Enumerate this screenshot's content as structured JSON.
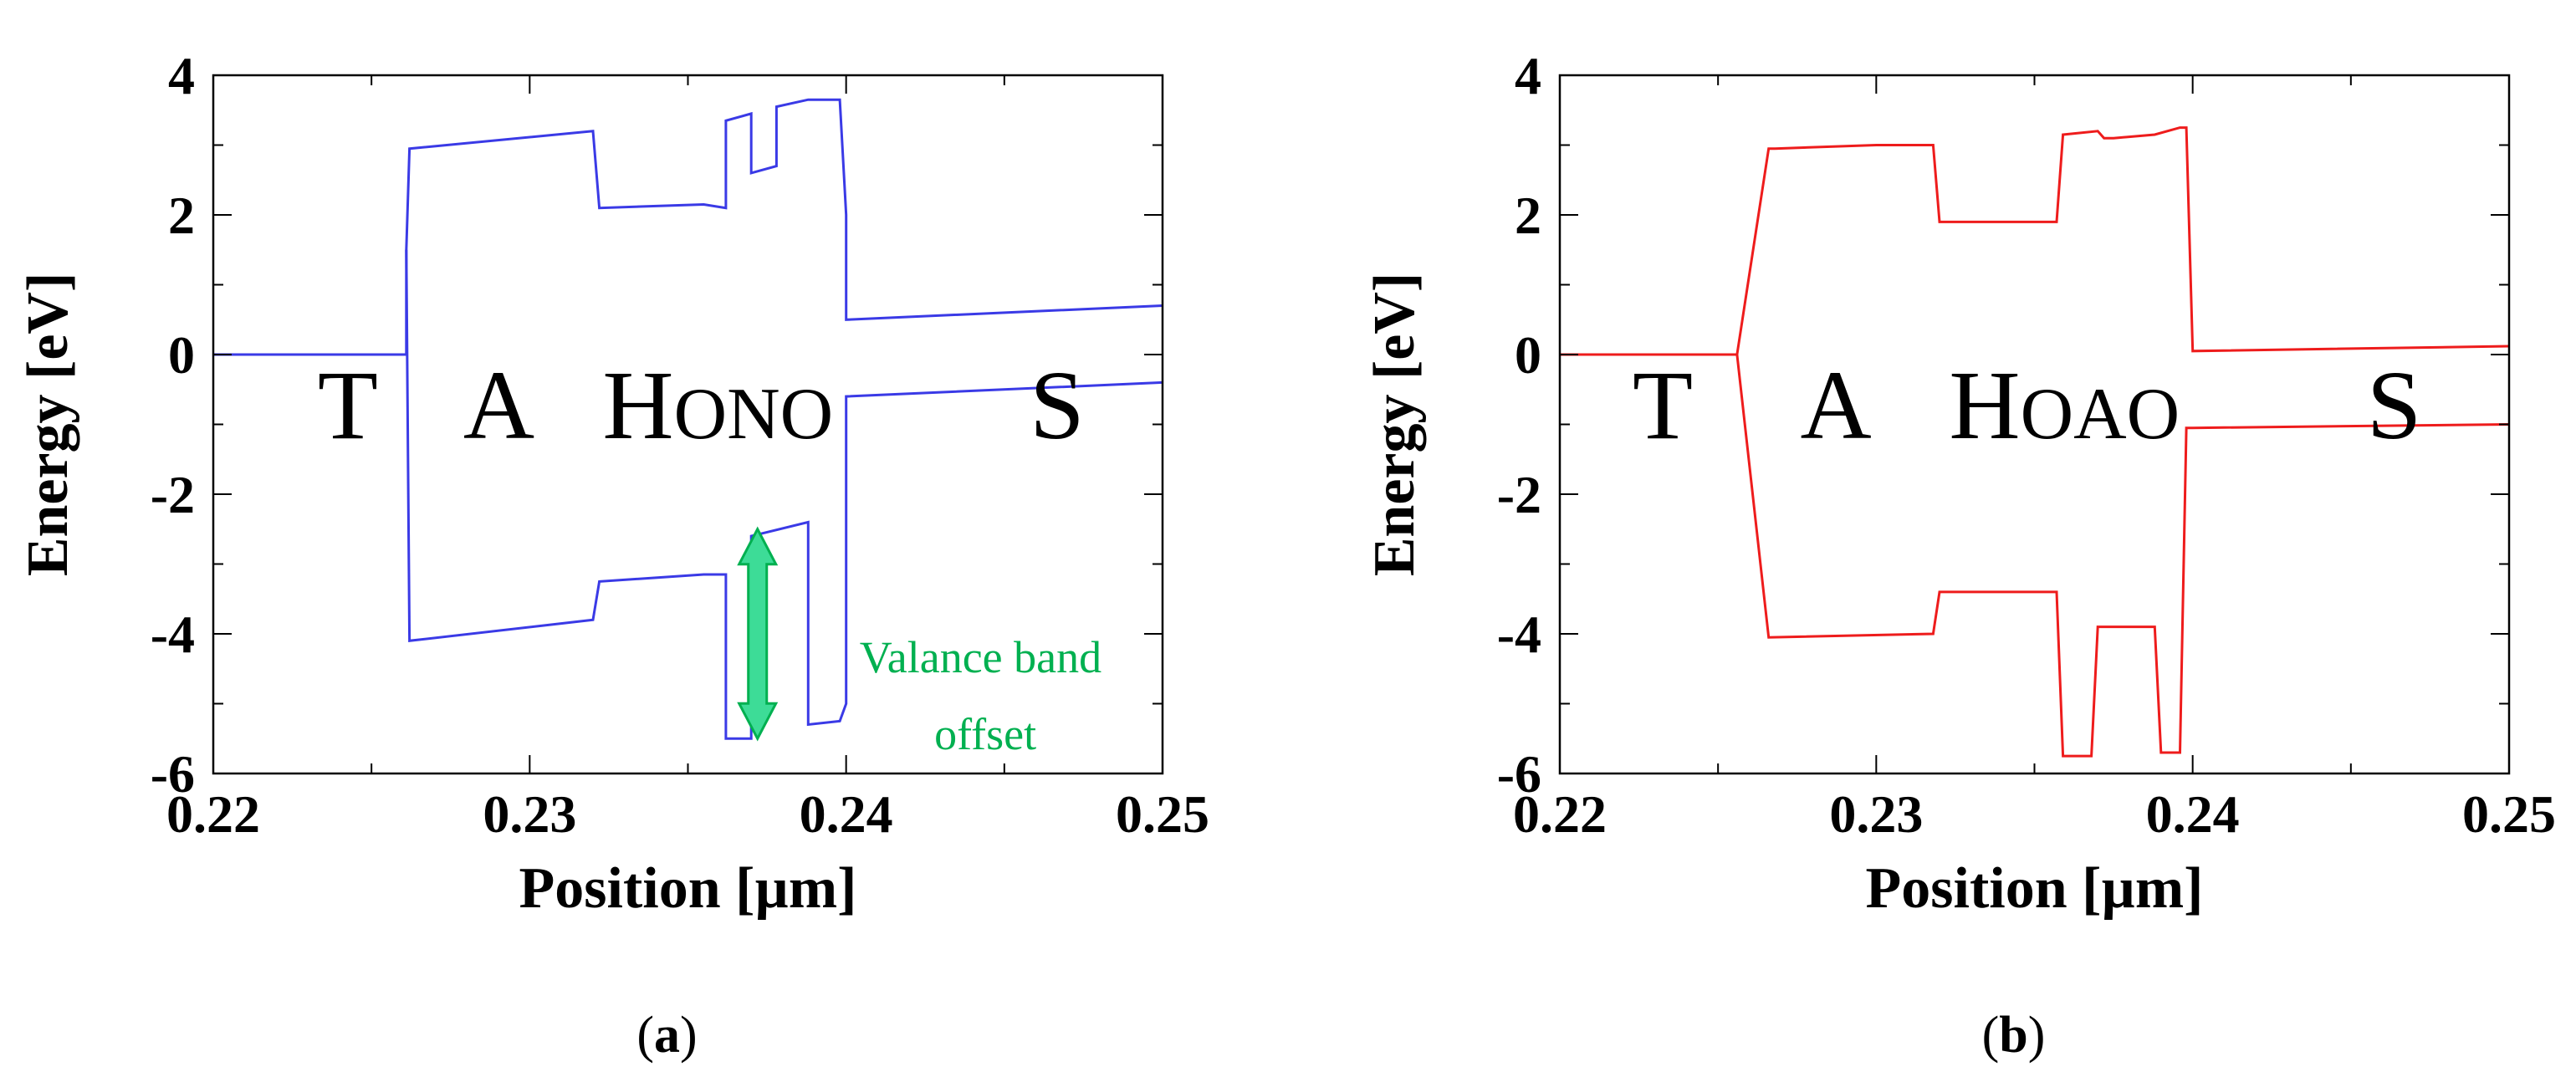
{
  "chart_data": [
    {
      "type": "line",
      "panel_label": "(a)",
      "caption": {
        "open": "(",
        "letter": "a",
        "close": ")"
      },
      "xlabel": "Position [µm]",
      "ylabel": "Energy [eV]",
      "xlim": [
        0.22,
        0.25
      ],
      "ylim": [
        -6,
        4
      ],
      "xticks": [
        0.22,
        0.23,
        0.24,
        0.25
      ],
      "xtick_labels": [
        "0.22",
        "0.23",
        "0.24",
        "0.25"
      ],
      "yticks": [
        -6,
        -4,
        -2,
        0,
        2,
        4
      ],
      "ytick_labels": [
        "-6",
        "-4",
        "-2",
        "0",
        "2",
        "4"
      ],
      "color": "#3a3ae6",
      "series": [
        {
          "name": "conduction band",
          "x": [
            0.22,
            0.2261,
            0.2261,
            0.2262,
            0.232,
            0.2322,
            0.2355,
            0.2362,
            0.2362,
            0.237,
            0.237,
            0.2378,
            0.2378,
            0.2388,
            0.2398,
            0.24,
            0.24,
            0.25
          ],
          "y": [
            0.0,
            0.0,
            1.5,
            2.95,
            3.2,
            2.1,
            2.15,
            2.1,
            3.35,
            3.45,
            2.6,
            2.7,
            3.55,
            3.65,
            3.65,
            2.0,
            0.5,
            0.7
          ]
        },
        {
          "name": "valence band",
          "x": [
            0.2261,
            0.2262,
            0.232,
            0.2322,
            0.2355,
            0.2362,
            0.2362,
            0.237,
            0.237,
            0.2388,
            0.2388,
            0.2398,
            0.24,
            0.24,
            0.25
          ],
          "y": [
            1.5,
            -4.1,
            -3.8,
            -3.25,
            -3.15,
            -3.15,
            -5.5,
            -5.5,
            -2.6,
            -2.4,
            -5.3,
            -5.25,
            -5.0,
            -0.6,
            -0.4
          ]
        }
      ],
      "region_labels": [
        {
          "main": "T",
          "small": "",
          "x": 0.2233,
          "y": -1.2
        },
        {
          "main": "A",
          "small": "",
          "x": 0.2279,
          "y": -1.2
        },
        {
          "main": "H",
          "small": "ONO",
          "x": 0.2323,
          "y": -1.2
        },
        {
          "main": "S",
          "small": "",
          "x": 0.2458,
          "y": -1.2
        }
      ],
      "annotation": {
        "line1": "Valance band",
        "line2": "offset",
        "arrow_x": 0.2372,
        "arrow_y_top": -2.5,
        "arrow_y_bottom": -5.5,
        "color": "#00b050",
        "fill": "#3ddc97"
      }
    },
    {
      "type": "line",
      "panel_label": "(b)",
      "caption": {
        "open": "(",
        "letter": "b",
        "close": ")"
      },
      "xlabel": "Position [µm]",
      "ylabel": "Energy [eV]",
      "xlim": [
        0.22,
        0.25
      ],
      "ylim": [
        -6,
        4
      ],
      "xticks": [
        0.22,
        0.23,
        0.24,
        0.25
      ],
      "xtick_labels": [
        "0.22",
        "0.23",
        "0.24",
        "0.25"
      ],
      "yticks": [
        -6,
        -4,
        -2,
        0,
        2,
        4
      ],
      "ytick_labels": [
        "-6",
        "-4",
        "-2",
        "0",
        "2",
        "4"
      ],
      "color": "#ee1c1c",
      "series": [
        {
          "name": "conduction band",
          "x": [
            0.22,
            0.2256,
            0.2266,
            0.2268,
            0.23,
            0.2302,
            0.2318,
            0.232,
            0.2357,
            0.2359,
            0.237,
            0.2372,
            0.2375,
            0.2388,
            0.2396,
            0.2398,
            0.24,
            0.25
          ],
          "y": [
            0.0,
            0.0,
            2.95,
            2.95,
            3.0,
            3.0,
            3.0,
            1.9,
            1.9,
            3.15,
            3.2,
            3.1,
            3.1,
            3.15,
            3.25,
            3.25,
            0.05,
            0.12
          ]
        },
        {
          "name": "valence band",
          "x": [
            0.2256,
            0.2266,
            0.2318,
            0.232,
            0.2357,
            0.2359,
            0.2368,
            0.237,
            0.2388,
            0.239,
            0.2396,
            0.2398,
            0.24,
            0.25
          ],
          "y": [
            0.0,
            -4.05,
            -4.0,
            -3.4,
            -3.4,
            -5.75,
            -5.75,
            -3.9,
            -3.9,
            -5.7,
            -5.7,
            -1.05,
            -1.05,
            -1.0
          ]
        }
      ],
      "region_labels": [
        {
          "main": "T",
          "small": "",
          "x": 0.2223,
          "y": -1.2
        },
        {
          "main": "A",
          "small": "",
          "x": 0.2276,
          "y": -1.2
        },
        {
          "main": "H",
          "small": "OAO",
          "x": 0.2323,
          "y": -1.2
        },
        {
          "main": "S",
          "small": "",
          "x": 0.2455,
          "y": -1.2
        }
      ]
    }
  ]
}
